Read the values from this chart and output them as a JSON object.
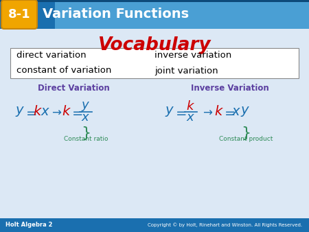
{
  "header_bg_color": "#1a6faf",
  "header_bg_color2": "#4a9fd4",
  "header_label_bg": "#f0a500",
  "header_label_text": "8-1",
  "header_title": "Variation Functions",
  "body_bg_color": "#dce8f5",
  "footer_bg_color": "#1a6faf",
  "footer_left": "Holt Algebra 2",
  "footer_right": "Copyright © by Holt, Rinehart and Winston. All Rights Reserved.",
  "vocab_title": "Vocabulary",
  "vocab_title_color": "#cc0000",
  "vocab_items_left": [
    "direct variation",
    "constant of variation"
  ],
  "vocab_items_right": [
    "inverse variation",
    "joint variation"
  ],
  "vocab_box_bg": "#ffffff",
  "direct_var_label": "Direct Variation",
  "inverse_var_label": "Inverse Variation",
  "label_color": "#5b3fa0",
  "constant_ratio_label": "Constant ratio",
  "constant_product_label": "Constant product",
  "annotation_color": "#2e8b57",
  "formula_blue": "#1a6faf",
  "formula_red": "#cc0000",
  "formula_green": "#2e8b57"
}
